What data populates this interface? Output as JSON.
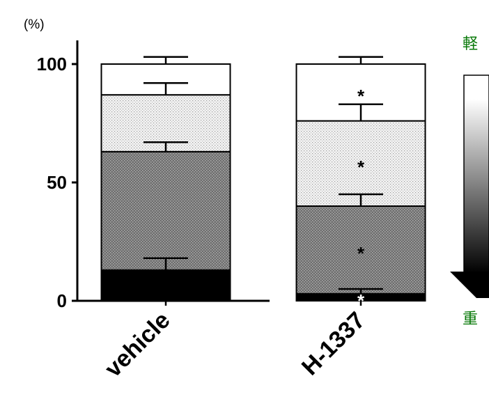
{
  "chart_data": {
    "type": "bar",
    "stacked": true,
    "y_unit": "(%)",
    "ylim": [
      0,
      100
    ],
    "yticks": [
      0,
      50,
      100
    ],
    "categories": [
      "vehicle",
      "H-1337"
    ],
    "series": [
      {
        "fill": "#000000",
        "values": [
          13,
          3
        ],
        "errors": [
          5,
          2
        ],
        "stars": [
          "",
          "*"
        ],
        "star_color": "#ffffff"
      },
      {
        "fill": "#808080",
        "values": [
          50,
          37
        ],
        "errors": [
          4,
          5
        ],
        "stars": [
          "",
          "*"
        ],
        "star_color": "#000000"
      },
      {
        "fill": "#e6e6e6",
        "values": [
          24,
          36
        ],
        "errors": [
          5,
          7
        ],
        "stars": [
          "",
          "*"
        ],
        "star_color": "#000000"
      },
      {
        "fill": "#ffffff",
        "values": [
          13,
          24
        ],
        "errors": [
          3,
          3
        ],
        "stars": [
          "",
          "*"
        ],
        "star_color": "#000000"
      }
    ],
    "severity_scale": {
      "top_label": "軽",
      "bottom_label": "重"
    }
  }
}
